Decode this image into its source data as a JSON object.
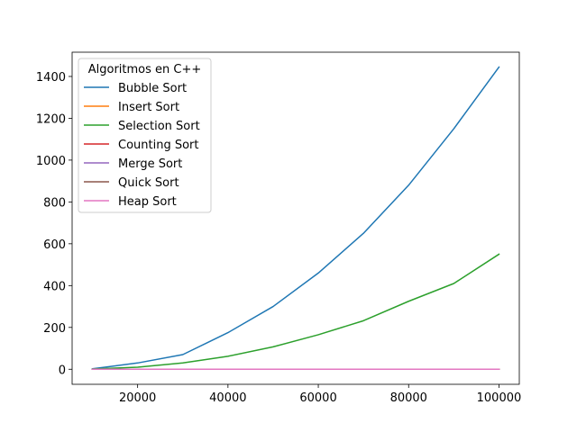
{
  "chart_data": {
    "type": "line",
    "legend_title": "Algoritmos en C++",
    "legend_position": "upper-left",
    "grid": false,
    "xlim": [
      5500,
      104500
    ],
    "ylim": [
      -72,
      1516
    ],
    "xticks": [
      20000,
      40000,
      60000,
      80000,
      100000
    ],
    "yticks": [
      0,
      200,
      400,
      600,
      800,
      1000,
      1200,
      1400
    ],
    "x": [
      10000,
      20000,
      30000,
      40000,
      50000,
      60000,
      70000,
      80000,
      90000,
      100000
    ],
    "series": [
      {
        "name": "Bubble Sort",
        "color": "#1f77b4",
        "values": [
          2,
          30,
          70,
          175,
          300,
          460,
          650,
          880,
          1150,
          1445
        ]
      },
      {
        "name": "Insert Sort",
        "color": "#ff7f0e",
        "values": [
          0,
          0,
          0,
          0,
          0,
          0,
          0,
          0,
          0,
          0
        ]
      },
      {
        "name": "Selection Sort",
        "color": "#2ca02c",
        "values": [
          1,
          10,
          30,
          62,
          107,
          165,
          232,
          325,
          410,
          550
        ]
      },
      {
        "name": "Counting Sort",
        "color": "#d62728",
        "values": [
          0,
          0,
          0,
          0,
          0,
          0,
          0,
          0,
          0,
          0
        ]
      },
      {
        "name": "Merge Sort",
        "color": "#9467bd",
        "values": [
          0,
          0,
          0,
          0,
          0,
          0,
          0,
          0,
          0,
          0
        ]
      },
      {
        "name": "Quick Sort",
        "color": "#8c564b",
        "values": [
          0,
          0,
          0,
          0,
          0,
          0,
          0,
          0,
          0,
          0
        ]
      },
      {
        "name": "Heap Sort",
        "color": "#e377c2",
        "values": [
          0,
          0,
          0,
          0,
          0,
          0,
          0,
          0,
          0,
          0
        ]
      }
    ]
  }
}
